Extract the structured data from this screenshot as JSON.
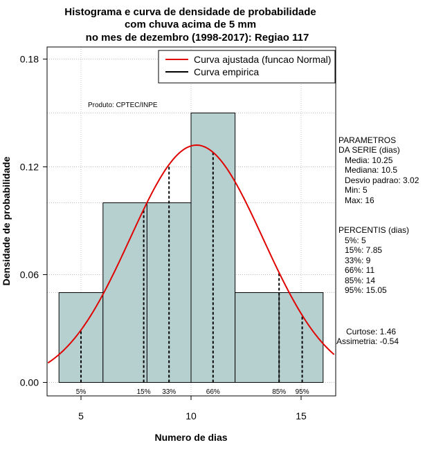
{
  "chart_data": {
    "type": "bar",
    "title_lines": [
      "Histograma e curva de densidade de probabilidade",
      "com chuva acima de 5 mm",
      "no mes de dezembro (1998-2017): Regiao 117"
    ],
    "xlabel": "Numero de dias",
    "ylabel": "Densidade de probabilidade",
    "xlim": [
      3.5,
      16.5
    ],
    "ylim": [
      0,
      0.19
    ],
    "x_ticks": [
      5,
      10,
      15
    ],
    "y_ticks": [
      0.0,
      0.06,
      0.12,
      0.18
    ],
    "y_tick_labels": [
      "0.00",
      "0.06",
      "0.12",
      "0.18"
    ],
    "grid": true,
    "bins": [
      {
        "start": 4,
        "end": 6,
        "density": 0.05
      },
      {
        "start": 6,
        "end": 8,
        "density": 0.1
      },
      {
        "start": 8,
        "end": 10,
        "density": 0.1
      },
      {
        "start": 10,
        "end": 12,
        "density": 0.15
      },
      {
        "start": 12,
        "end": 14,
        "density": 0.05
      },
      {
        "start": 14,
        "end": 16,
        "density": 0.05
      }
    ],
    "normal_fit": {
      "mean": 10.25,
      "sd": 3.02
    },
    "percentile_lines": [
      {
        "label": "5%",
        "x": 5
      },
      {
        "label": "15%",
        "x": 7.85
      },
      {
        "label": "33%",
        "x": 9
      },
      {
        "label": "66%",
        "x": 11
      },
      {
        "label": "85%",
        "x": 14
      },
      {
        "label": "95%",
        "x": 15.05
      }
    ],
    "legend": [
      {
        "label": "Curva ajustada (funcao Normal)",
        "color": "#e00000"
      },
      {
        "label": "Curva empirica",
        "color": "#000000"
      }
    ],
    "legend_position": "top-right",
    "annotation": "Produto: CPTEC/INPE",
    "colors": {
      "bar_fill": "#b6cfcf",
      "curve": "#e00000",
      "grid": "#c0c0c0"
    }
  },
  "side_panel": {
    "parametros_title_1": "PARAMETROS",
    "parametros_title_2": "DA SERIE (dias)",
    "parametros": [
      "Media: 10.25",
      "Mediana: 10.5",
      "Desvio padrao: 3.02",
      "Min: 5",
      "Max: 16"
    ],
    "percentis_title": "PERCENTIS (dias)",
    "percentis": [
      "5%: 5",
      "15%: 7.85",
      "33%: 9",
      "66%: 11",
      "85%: 14",
      "95%: 15.05"
    ],
    "curtose": "Curtose: 1.46",
    "assimetria": "Assimetria: -0.54"
  }
}
